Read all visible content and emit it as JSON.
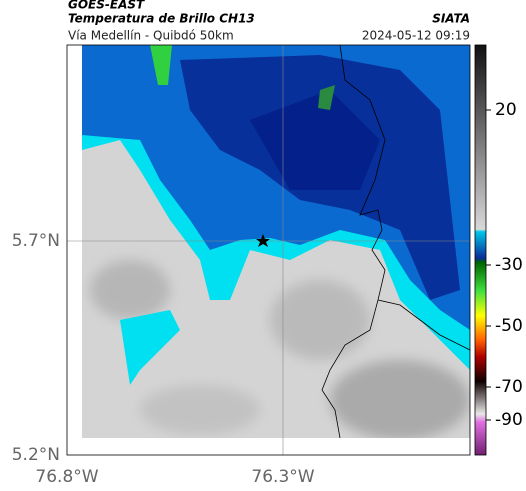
{
  "header": {
    "product": "GOES-EAST",
    "title": "Temperatura de Brillo CH13",
    "source": "SIATA",
    "subtitle": "Vía Medellín - Quibdó 50km",
    "datetime": "2024-05-12 09:19"
  },
  "map": {
    "lat_labels": [
      "5.7°N",
      "5.2°N"
    ],
    "lon_labels": [
      "76.8°W",
      "76.3°W"
    ]
  },
  "colorbar": {
    "ticks": [
      "20",
      "-30",
      "-50",
      "-70",
      "-90"
    ]
  }
}
